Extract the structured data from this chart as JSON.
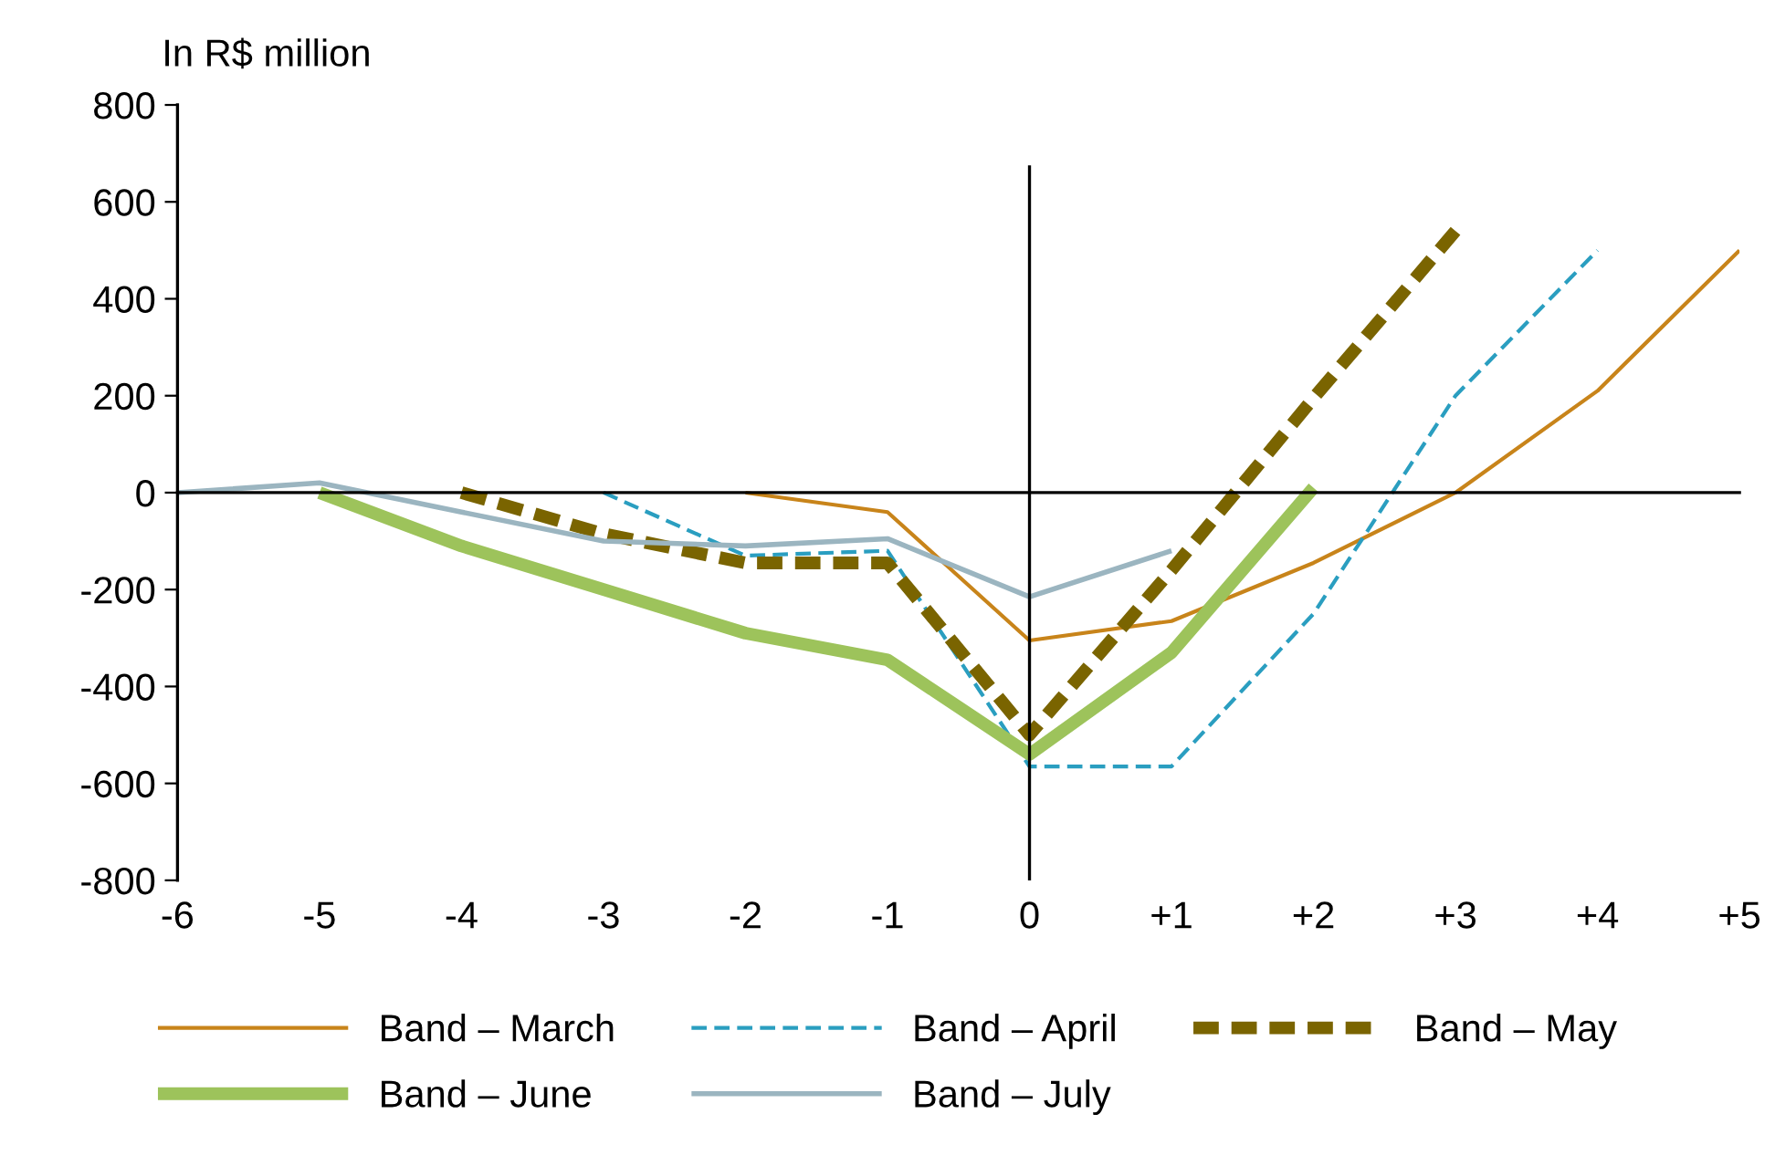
{
  "chart_data": {
    "type": "line",
    "ylabel": "In R$ million",
    "x": [
      -6,
      -5,
      -4,
      -3,
      -2,
      -1,
      0,
      1,
      2,
      3,
      4,
      5
    ],
    "series": [
      {
        "name": "Band – March",
        "color": "#c8841a",
        "line_style": "solid",
        "values": [
          null,
          null,
          null,
          null,
          0,
          -40,
          -305,
          -265,
          -145,
          0,
          210,
          500
        ]
      },
      {
        "name": "Band – April",
        "color": "#2a9ec0",
        "line_style": "dashed",
        "values": [
          null,
          null,
          null,
          0,
          -130,
          -120,
          -565,
          -565,
          -250,
          200,
          500,
          null
        ]
      },
      {
        "name": "Band – May",
        "color": "#7a6400",
        "line_style": "dashed",
        "values": [
          null,
          null,
          0,
          -85,
          -145,
          -145,
          -500,
          -160,
          195,
          540,
          null,
          null
        ]
      },
      {
        "name": "Band – June",
        "color": "#9dc35b",
        "line_style": "solid",
        "values": [
          null,
          0,
          -110,
          -200,
          -290,
          -345,
          -540,
          -330,
          10,
          null,
          null,
          null
        ]
      },
      {
        "name": "Band – July",
        "color": "#9bb5c0",
        "line_style": "solid",
        "values": [
          0,
          20,
          -40,
          -100,
          -110,
          -95,
          -215,
          -120,
          null,
          null,
          null,
          null
        ]
      }
    ],
    "xlim": [
      -6,
      5
    ],
    "xticks": [
      -6,
      -5,
      -4,
      -3,
      -2,
      -1,
      0,
      {
        "value": 1,
        "label": "+1"
      },
      {
        "value": 2,
        "label": "+2"
      },
      {
        "value": 3,
        "label": "+3"
      },
      {
        "value": 4,
        "label": "+4"
      },
      {
        "value": 5,
        "label": "+5"
      }
    ],
    "ylim": [
      -800,
      800
    ],
    "yticks": [
      -800,
      -600,
      -400,
      -200,
      0,
      200,
      400,
      600,
      800
    ],
    "ref_lines": [
      {
        "axis": "x",
        "value": 0,
        "color": "#000000"
      }
    ],
    "legend": "bottom",
    "marker": "none"
  }
}
